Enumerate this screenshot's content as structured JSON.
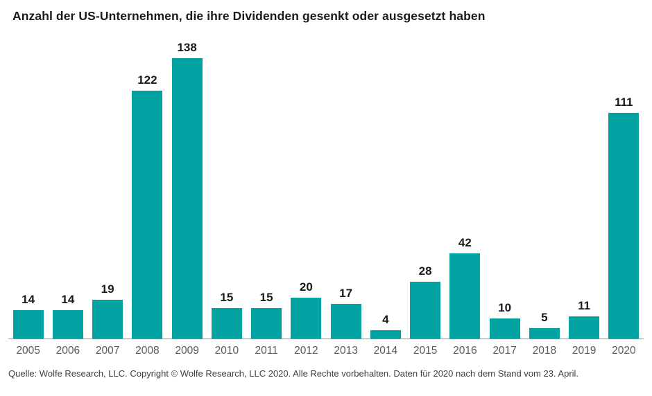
{
  "chart_data": {
    "type": "bar",
    "title": "Anzahl der US-Unternehmen, die ihre Dividenden gesenkt oder ausgesetzt haben",
    "categories": [
      "2005",
      "2006",
      "2007",
      "2008",
      "2009",
      "2010",
      "2011",
      "2012",
      "2013",
      "2014",
      "2015",
      "2016",
      "2017",
      "2018",
      "2019",
      "2020"
    ],
    "values": [
      14,
      14,
      19,
      122,
      138,
      15,
      15,
      20,
      17,
      4,
      28,
      42,
      10,
      5,
      11,
      111
    ],
    "xlabel": "",
    "ylabel": "",
    "ylim": [
      0,
      138
    ],
    "grid": false,
    "legend": false,
    "data_labels": true
  },
  "colors": {
    "bar": "#00A3A1",
    "axis_line": "#8c8c8c",
    "value_label": "#1a1a1a",
    "year_label": "#595959"
  },
  "source": "Quelle: Wolfe Research, LLC. Copyright © Wolfe Research, LLC 2020. Alle Rechte vorbehalten. Daten für 2020 nach dem Stand vom 23. April."
}
